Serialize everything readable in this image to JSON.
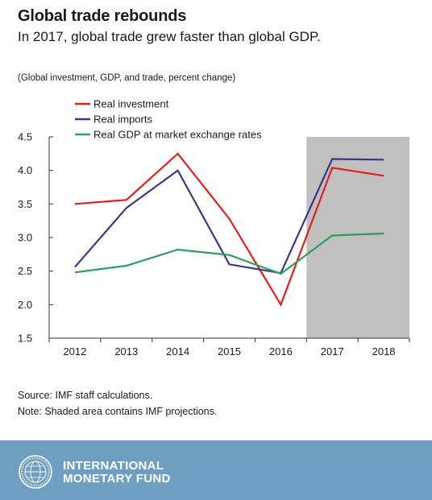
{
  "header": {
    "title": "Global trade rebounds",
    "subtitle": "In 2017, global trade grew faster than global GDP."
  },
  "chart_data": {
    "type": "line",
    "units_label": "(Global investment, GDP, and trade, percent change)",
    "x": [
      "2012",
      "2013",
      "2014",
      "2015",
      "2016",
      "2017",
      "2018"
    ],
    "ylim": [
      1.5,
      4.5
    ],
    "yticks": [
      "1.5",
      "2.0",
      "2.5",
      "3.0",
      "3.5",
      "4.0",
      "4.5"
    ],
    "grid": false,
    "legend_position": "top-left",
    "shaded_region": {
      "from": "2016.5",
      "to": "2018.5",
      "label": "IMF projections"
    },
    "series": [
      {
        "name": "Real investment",
        "color": "#e0201c",
        "values": [
          3.5,
          3.56,
          4.25,
          3.28,
          2.0,
          4.04,
          3.92
        ]
      },
      {
        "name": "Real imports",
        "color": "#3c3588",
        "values": [
          2.56,
          3.44,
          4.0,
          2.6,
          2.47,
          4.17,
          4.16
        ]
      },
      {
        "name": "Real GDP at market exchange rates",
        "color": "#2aa05a",
        "values": [
          2.48,
          2.58,
          2.82,
          2.74,
          2.46,
          3.03,
          3.06
        ]
      }
    ]
  },
  "notes": {
    "source": "Source: IMF staff calculations.",
    "note": "Note: Shaded area contains IMF projections."
  },
  "footer": {
    "org_line1": "INTERNATIONAL",
    "org_line2": "MONETARY FUND",
    "seal_text": "INTERNATIONAL MONETARY FUND",
    "seal_icon": "imf-seal-icon",
    "background": "#6e9ec0"
  }
}
